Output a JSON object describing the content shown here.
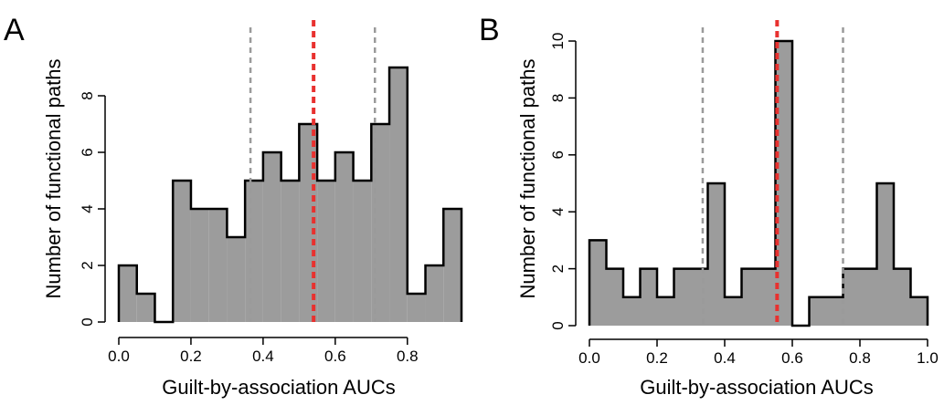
{
  "chart_data": [
    {
      "panel": "A",
      "type": "bar",
      "xlabel": "Guilt-by-association AUCs",
      "ylabel": "Number of functional paths",
      "bin_edges": [
        0.0,
        0.05,
        0.1,
        0.15,
        0.2,
        0.25,
        0.3,
        0.35,
        0.4,
        0.45,
        0.5,
        0.55,
        0.6,
        0.65,
        0.7,
        0.75,
        0.8,
        0.85,
        0.9,
        0.95
      ],
      "values": [
        2,
        1,
        0,
        5,
        4,
        4,
        3,
        5,
        6,
        5,
        7,
        5,
        6,
        5,
        7,
        9,
        1,
        2,
        4
      ],
      "xlim": [
        0.0,
        0.95
      ],
      "ylim": [
        0,
        9
      ],
      "xticks": [
        0.0,
        0.2,
        0.4,
        0.6,
        0.8
      ],
      "xtick_labels": [
        "0.0",
        "0.2",
        "0.4",
        "0.6",
        "0.8"
      ],
      "yticks": [
        0,
        2,
        4,
        6,
        8
      ],
      "ytick_labels": [
        "0",
        "2",
        "4",
        "6",
        "8"
      ],
      "reference_lines": [
        {
          "x": 0.365,
          "style": "gray-dashed"
        },
        {
          "x": 0.54,
          "style": "red-dashed"
        },
        {
          "x": 0.71,
          "style": "gray-dashed"
        }
      ]
    },
    {
      "panel": "B",
      "type": "bar",
      "xlabel": "Guilt-by-association AUCs",
      "ylabel": "Number of functional paths",
      "bin_edges": [
        0.0,
        0.05,
        0.1,
        0.15,
        0.2,
        0.25,
        0.3,
        0.35,
        0.4,
        0.45,
        0.5,
        0.55,
        0.6,
        0.65,
        0.7,
        0.75,
        0.8,
        0.85,
        0.9,
        0.95,
        1.0
      ],
      "values": [
        3,
        2,
        1,
        2,
        1,
        2,
        2,
        5,
        1,
        2,
        2,
        10,
        0,
        1,
        1,
        2,
        2,
        5,
        2,
        1
      ],
      "xlim": [
        0.0,
        1.0
      ],
      "ylim": [
        0,
        10
      ],
      "xticks": [
        0.0,
        0.2,
        0.4,
        0.6,
        0.8,
        1.0
      ],
      "xtick_labels": [
        "0.0",
        "0.2",
        "0.4",
        "0.6",
        "0.8",
        "1.0"
      ],
      "yticks": [
        0,
        2,
        4,
        6,
        8,
        10
      ],
      "ytick_labels": [
        "0",
        "2",
        "4",
        "6",
        "8",
        "10"
      ],
      "reference_lines": [
        {
          "x": 0.335,
          "style": "gray-dashed"
        },
        {
          "x": 0.555,
          "style": "red-dashed"
        },
        {
          "x": 0.75,
          "style": "gray-dashed"
        }
      ]
    }
  ],
  "colors": {
    "bar_fill": "#9c9c9c",
    "outline": "#000000",
    "reference_gray": "#9a9a9a",
    "reference_red": "#e8312f"
  }
}
